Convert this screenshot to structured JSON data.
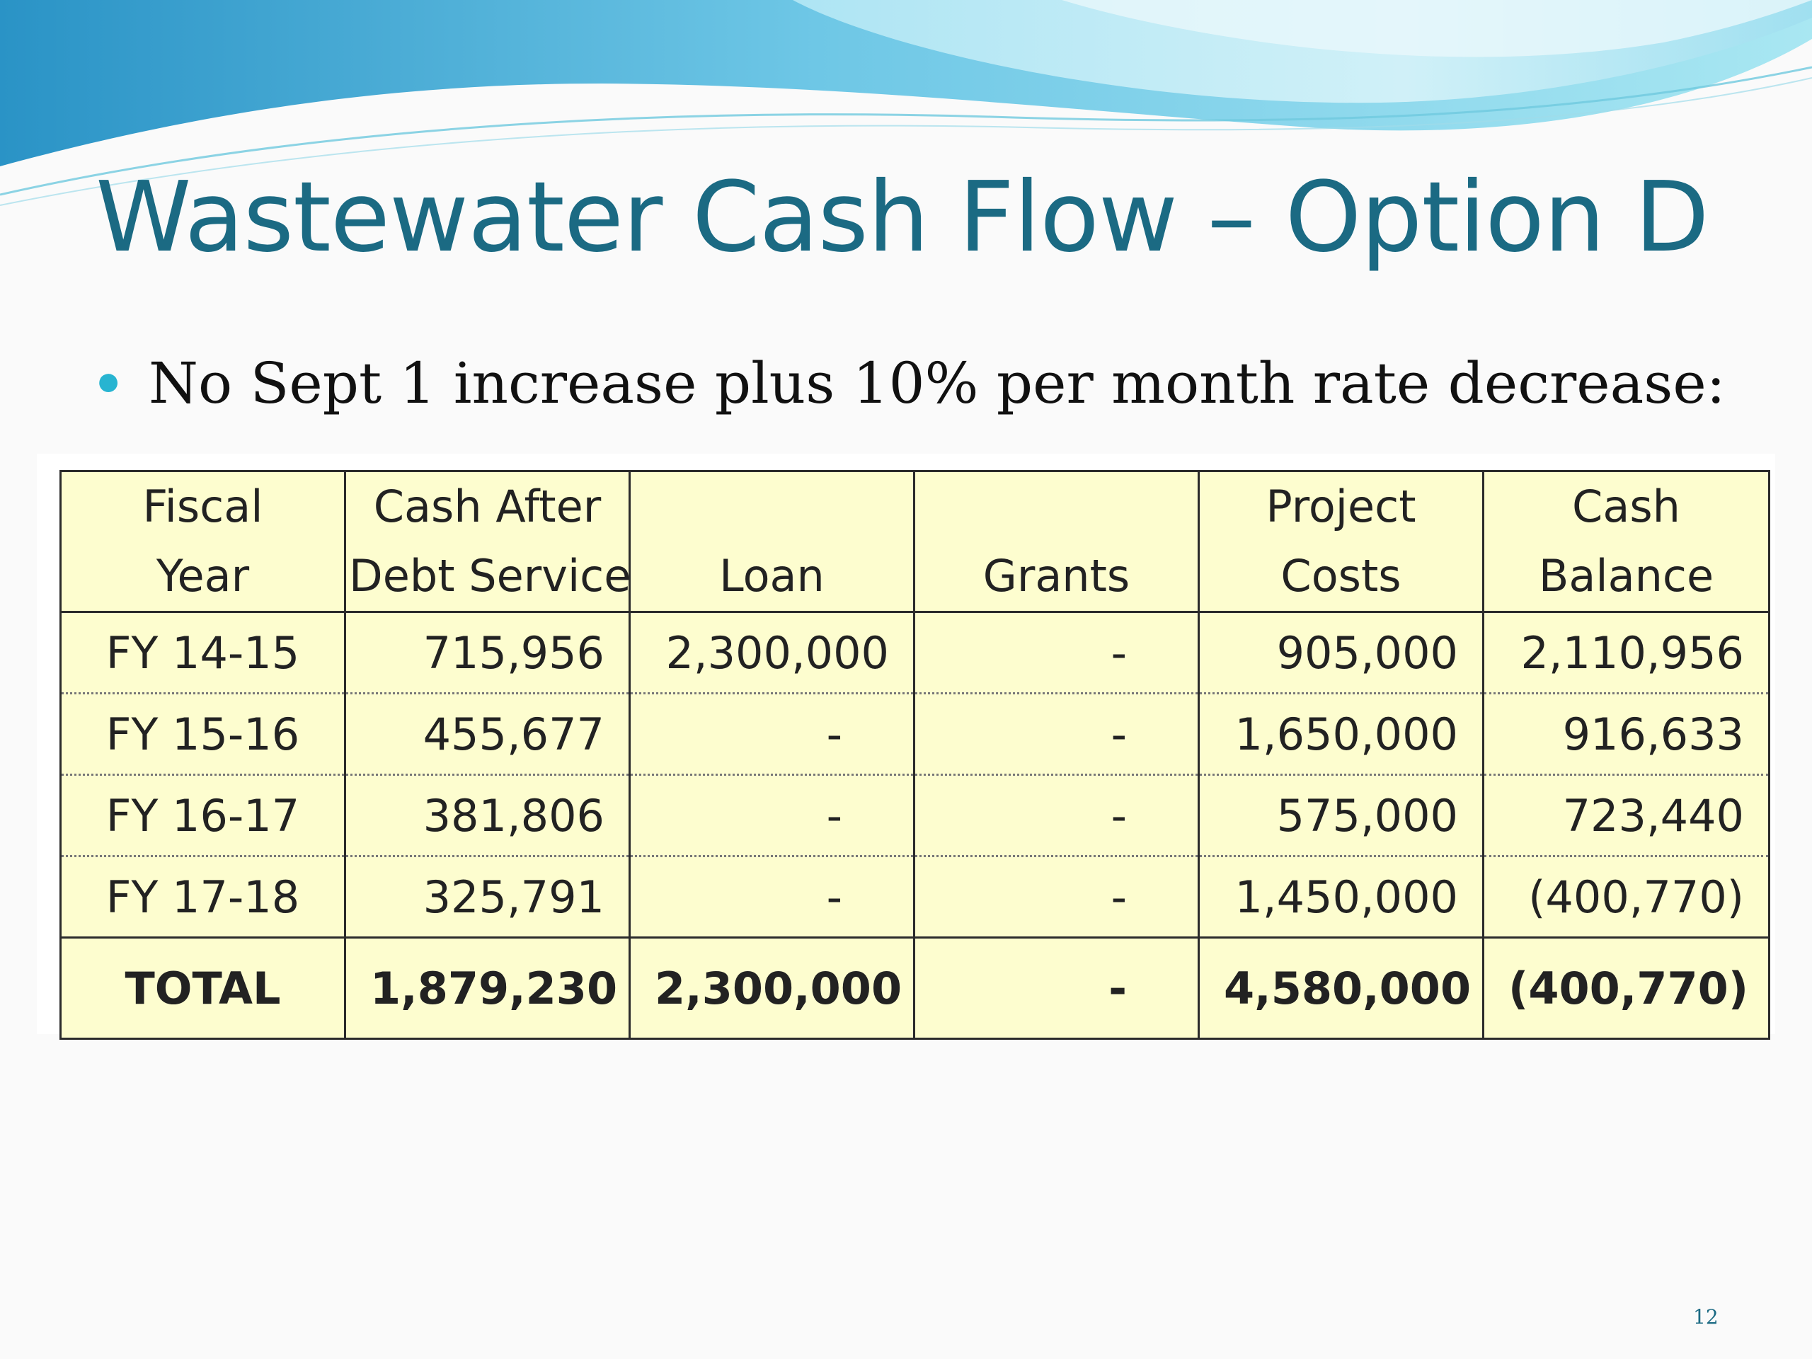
{
  "slide": {
    "title": "Wastewater Cash Flow – Option D",
    "bullet": "No Sept 1 increase plus 10% per month rate decrease:",
    "page_number": "12"
  },
  "table": {
    "headers": [
      {
        "line1": "Fiscal",
        "line2": "Year"
      },
      {
        "line1": "Cash After",
        "line2": "Debt Service"
      },
      {
        "line1": "",
        "line2": "Loan"
      },
      {
        "line1": "",
        "line2": "Grants"
      },
      {
        "line1": "Project",
        "line2": "Costs"
      },
      {
        "line1": "Cash",
        "line2": "Balance"
      }
    ],
    "rows": [
      [
        "FY 14-15",
        "715,956",
        "2,300,000",
        "-",
        "905,000",
        "2,110,956"
      ],
      [
        "FY 15-16",
        "455,677",
        "-",
        "-",
        "1,650,000",
        "916,633"
      ],
      [
        "FY 16-17",
        "381,806",
        "-",
        "-",
        "575,000",
        "723,440"
      ],
      [
        "FY 17-18",
        "325,791",
        "-",
        "-",
        "1,450,000",
        "(400,770)"
      ]
    ],
    "total": [
      "TOTAL",
      "1,879,230",
      "2,300,000",
      "-",
      "4,580,000",
      "(400,770)"
    ]
  },
  "colors": {
    "title": "#1b6a83",
    "bullet": "#27b4d1",
    "table_fill": "#fdfdcf",
    "wave_dark": "#2a93c6",
    "wave_light": "#9de2ef"
  }
}
